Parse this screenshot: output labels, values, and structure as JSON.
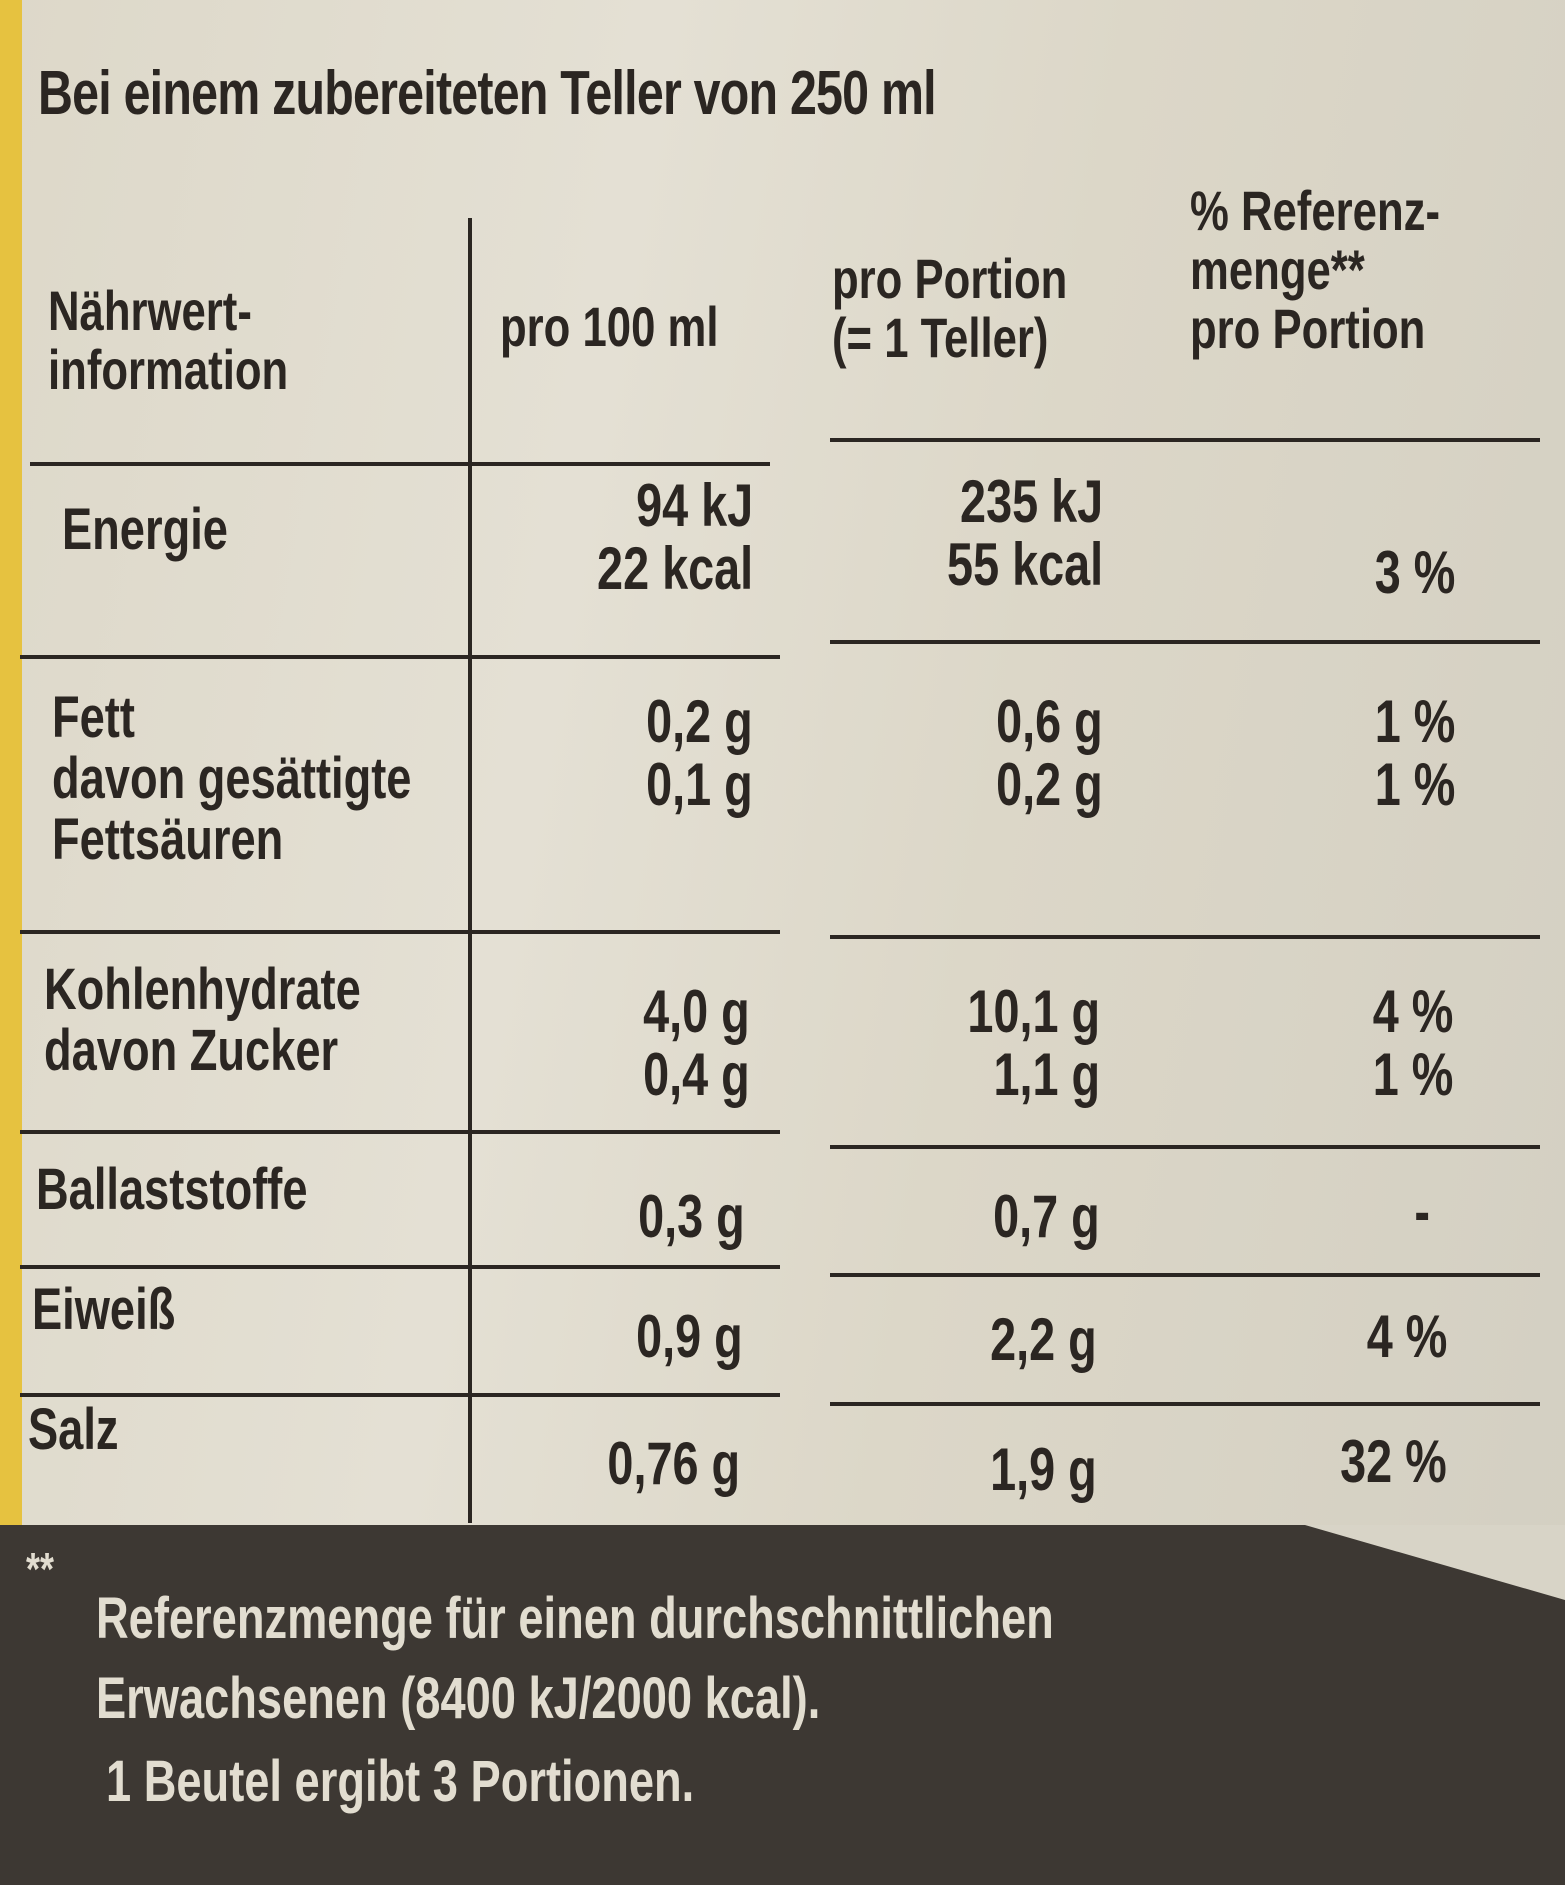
{
  "title": "Bei einem zubereiteten Teller von 250 ml",
  "headers": {
    "col1": "Nährwert-\ninformation",
    "col2": "pro 100 ml",
    "col3": "pro Portion\n(= 1 Teller)",
    "col4": "% Referenz-\nmenge**\npro Portion"
  },
  "rows": [
    {
      "label": "Energie",
      "per100": "94 kJ\n22 kcal",
      "portion": "235 kJ\n55 kcal",
      "ref": "\n3 %"
    },
    {
      "label": "Fett\ndavon gesättigte\nFettsäuren",
      "per100": "0,2 g\n0,1 g",
      "portion": "0,6 g\n0,2 g",
      "ref": "1 %\n1 %"
    },
    {
      "label": "Kohlenhydrate\ndavon Zucker",
      "per100": "4,0 g\n0,4 g",
      "portion": "10,1 g\n1,1 g",
      "ref": "4 %\n1 %"
    },
    {
      "label": "Ballaststoffe",
      "per100": "0,3 g",
      "portion": "0,7 g",
      "ref": "-"
    },
    {
      "label": "Eiweiß",
      "per100": "0,9 g",
      "portion": "2,2 g",
      "ref": "4 %"
    },
    {
      "label": "Salz",
      "per100": "0,76 g",
      "portion": "1,9 g",
      "ref": "32 %"
    }
  ],
  "footnote": {
    "marker": "**",
    "line1": "Referenzmenge für einen durchschnittlichen",
    "line2": "Erwachsenen (8400 kJ/2000 kcal).",
    "line3": "1 Beutel ergibt 3 Portionen."
  }
}
